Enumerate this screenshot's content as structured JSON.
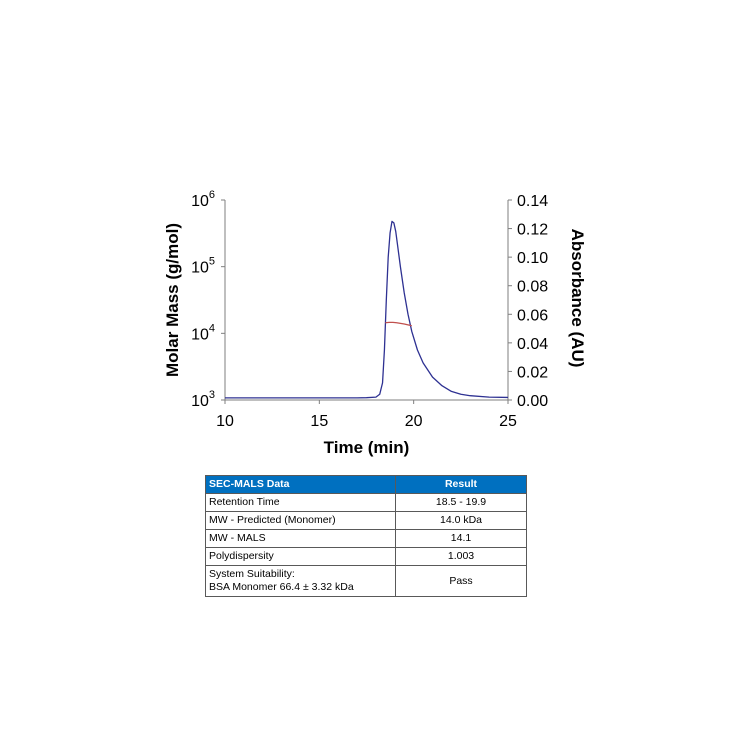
{
  "chart_data": {
    "type": "line",
    "xlabel": "Time (min)",
    "ylabel": "Molar Mass (g/mol)",
    "y2label": "Absorbance (AU)",
    "xlim": [
      10,
      25
    ],
    "x_ticks": [
      "10",
      "15",
      "20",
      "25"
    ],
    "ylim": [
      1000,
      1000000
    ],
    "y_scale": "log",
    "y_ticks": [
      {
        "base": "10",
        "exp": "3"
      },
      {
        "base": "10",
        "exp": "4"
      },
      {
        "base": "10",
        "exp": "5"
      },
      {
        "base": "10",
        "exp": "6"
      }
    ],
    "y2lim": [
      0,
      0.14
    ],
    "y2_ticks": [
      "0.00",
      "0.02",
      "0.04",
      "0.06",
      "0.08",
      "0.10",
      "0.12",
      "0.14"
    ],
    "grid": false,
    "series": [
      {
        "axis": "y2",
        "color": "#2e3192",
        "x": [
          10,
          12,
          14,
          16,
          17,
          17.5,
          18,
          18.2,
          18.35,
          18.45,
          18.55,
          18.65,
          18.75,
          18.85,
          18.95,
          19.05,
          19.15,
          19.3,
          19.5,
          19.7,
          19.9,
          20.2,
          20.5,
          21,
          21.5,
          22,
          22.5,
          23,
          24,
          25
        ],
        "y": [
          0.0015,
          0.0015,
          0.0015,
          0.0015,
          0.0015,
          0.0016,
          0.002,
          0.004,
          0.012,
          0.035,
          0.07,
          0.1,
          0.117,
          0.125,
          0.124,
          0.118,
          0.108,
          0.093,
          0.075,
          0.06,
          0.048,
          0.035,
          0.026,
          0.016,
          0.01,
          0.006,
          0.004,
          0.003,
          0.002,
          0.0018
        ]
      },
      {
        "axis": "y",
        "color": "#c0504d",
        "x": [
          18.5,
          18.7,
          18.9,
          19.1,
          19.3,
          19.5,
          19.7,
          19.9
        ],
        "y": [
          14400,
          14600,
          14600,
          14400,
          14100,
          13800,
          13400,
          13000
        ]
      }
    ]
  },
  "table": {
    "headers": [
      "SEC-MALS Data",
      "Result"
    ],
    "rows": [
      {
        "label": [
          "Retention Time"
        ],
        "value": "18.5 - 19.9"
      },
      {
        "label": [
          "MW - Predicted (Monomer)"
        ],
        "value": "14.0  kDa"
      },
      {
        "label": [
          "MW - MALS"
        ],
        "value": "14.1"
      },
      {
        "label": [
          "Polydispersity"
        ],
        "value": "1.003"
      },
      {
        "label": [
          "System Suitability:",
          "BSA Monomer 66.4 ± 3.32 kDa"
        ],
        "value": "Pass"
      }
    ]
  }
}
